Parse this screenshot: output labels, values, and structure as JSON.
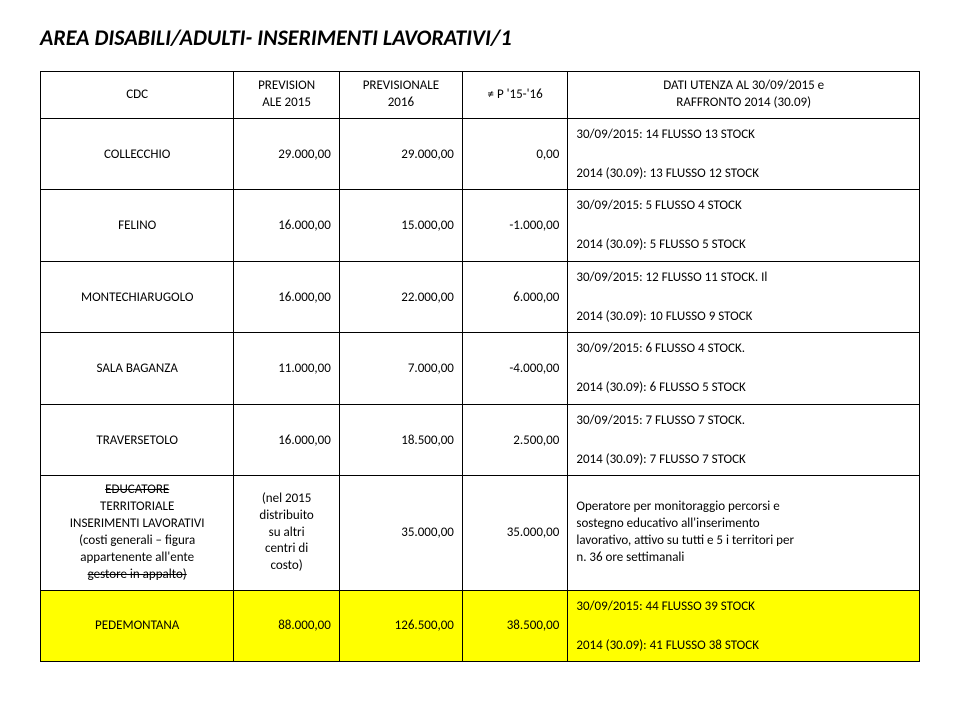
{
  "title": "AREA DISABILI/ADULTI- INSERIMENTI LAVORATIVI/1",
  "headers": {
    "cdc": "CDC",
    "prev2015_l1": "PREVISION",
    "prev2015_l2": "ALE 2015",
    "prev2016_l1": "PREVISIONALE",
    "prev2016_l2": "2016",
    "diff": "≠ P '15-'16",
    "dati_l1": "DATI UTENZA AL 30/09/2015 e",
    "dati_l2": "RAFFRONTO 2014 (30.09)"
  },
  "rows": [
    {
      "cdc": "COLLECCHIO",
      "p2015": "29.000,00",
      "p2016": "29.000,00",
      "diff": "0,00",
      "dati_l1": "30/09/2015: 14 FLUSSO 13 STOCK",
      "dati_l2": "2014 (30.09): 13 FLUSSO 12 STOCK"
    },
    {
      "cdc": "FELINO",
      "p2015": "16.000,00",
      "p2016": "15.000,00",
      "diff": "-1.000,00",
      "dati_l1": "30/09/2015: 5 FLUSSO 4 STOCK",
      "dati_l2": "2014 (30.09): 5 FLUSSO 5 STOCK"
    },
    {
      "cdc": "MONTECHIARUGOLO",
      "p2015": "16.000,00",
      "p2016": "22.000,00",
      "diff": "6.000,00",
      "dati_l1": "30/09/2015: 12 FLUSSO 11 STOCK. Il",
      "dati_l2": "2014 (30.09): 10 FLUSSO 9 STOCK"
    },
    {
      "cdc": "SALA BAGANZA",
      "p2015": "11.000,00",
      "p2016": "7.000,00",
      "diff": "-4.000,00",
      "dati_l1": "30/09/2015: 6 FLUSSO 4 STOCK.",
      "dati_l2": "2014 (30.09): 6 FLUSSO 5 STOCK"
    },
    {
      "cdc": "TRAVERSETOLO",
      "p2015": "16.000,00",
      "p2016": "18.500,00",
      "diff": "2.500,00",
      "dati_l1": "30/09/2015: 7 FLUSSO 7 STOCK.",
      "dati_l2": "2014 (30.09): 7 FLUSSO 7 STOCK"
    }
  ],
  "educatore": {
    "cdc_l1": "EDUCATORE",
    "cdc_l2": "TERRITORIALE",
    "cdc_l3": "INSERIMENTI LAVORATIVI",
    "cdc_l4": "(costi generali – figura",
    "cdc_l5": "appartenente all'ente",
    "cdc_l6": "gestore in appalto)",
    "p2015_l1": "(nel 2015",
    "p2015_l2": "distribuito",
    "p2015_l3": "su altri",
    "p2015_l4": "centri di",
    "p2015_l5": "costo)",
    "p2016": "35.000,00",
    "diff": "35.000,00",
    "dati_l1": "Operatore per monitoraggio percorsi e",
    "dati_l2": "sostegno educativo all'inserimento",
    "dati_l3": "lavorativo, attivo su tutti e 5 i territori per",
    "dati_l4": "n. 36 ore settimanali"
  },
  "pedemontana": {
    "cdc": "PEDEMONTANA",
    "p2015": "88.000,00",
    "p2016": "126.500,00",
    "diff": "38.500,00",
    "dati_l1": "30/09/2015: 44 FLUSSO 39 STOCK",
    "dati_l2": "2014 (30.09): 41 FLUSSO 38 STOCK"
  }
}
